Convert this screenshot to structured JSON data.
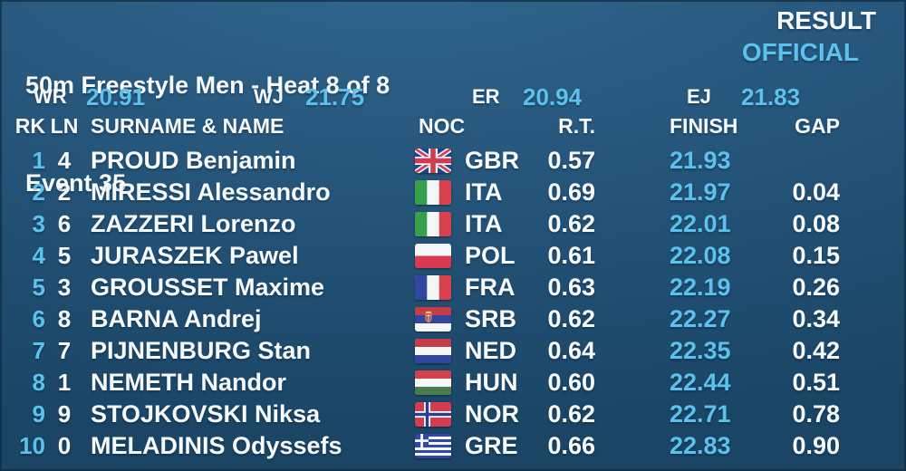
{
  "header": {
    "title_line1": "50m Freestyle Men - Heat 8 of 8",
    "title_line2": "Event 35",
    "status_line1": "RESULT",
    "status_line2": "OFFICIAL"
  },
  "records": [
    {
      "label": "WR",
      "value": "20.91"
    },
    {
      "label": "WJ",
      "value": "21.75"
    },
    {
      "label": "ER",
      "value": "20.94"
    },
    {
      "label": "EJ",
      "value": "21.83"
    }
  ],
  "columns": {
    "rank": "RK",
    "lane": "LN",
    "name": "SURNAME & NAME",
    "noc": "NOC",
    "rt": "R.T.",
    "finish": "FINISH",
    "gap": "GAP"
  },
  "results": [
    {
      "rank": "1",
      "lane": "4",
      "name": "PROUD Benjamin",
      "flag": "GBR",
      "noc": "GBR",
      "rt": "0.57",
      "finish": "21.93",
      "gap": ""
    },
    {
      "rank": "2",
      "lane": "2",
      "name": "MIRESSI Alessandro",
      "flag": "ITA",
      "noc": "ITA",
      "rt": "0.69",
      "finish": "21.97",
      "gap": "0.04"
    },
    {
      "rank": "3",
      "lane": "6",
      "name": "ZAZZERI Lorenzo",
      "flag": "ITA",
      "noc": "ITA",
      "rt": "0.62",
      "finish": "22.01",
      "gap": "0.08"
    },
    {
      "rank": "4",
      "lane": "5",
      "name": "JURASZEK Pawel",
      "flag": "POL",
      "noc": "POL",
      "rt": "0.61",
      "finish": "22.08",
      "gap": "0.15"
    },
    {
      "rank": "5",
      "lane": "3",
      "name": "GROUSSET Maxime",
      "flag": "FRA",
      "noc": "FRA",
      "rt": "0.63",
      "finish": "22.19",
      "gap": "0.26"
    },
    {
      "rank": "6",
      "lane": "8",
      "name": "BARNA Andrej",
      "flag": "SRB",
      "noc": "SRB",
      "rt": "0.62",
      "finish": "22.27",
      "gap": "0.34"
    },
    {
      "rank": "7",
      "lane": "7",
      "name": "PIJNENBURG Stan",
      "flag": "NED",
      "noc": "NED",
      "rt": "0.64",
      "finish": "22.35",
      "gap": "0.42"
    },
    {
      "rank": "8",
      "lane": "1",
      "name": "NEMETH Nandor",
      "flag": "HUN",
      "noc": "HUN",
      "rt": "0.60",
      "finish": "22.44",
      "gap": "0.51"
    },
    {
      "rank": "9",
      "lane": "9",
      "name": "STOJKOVSKI Niksa",
      "flag": "NOR",
      "noc": "NOR",
      "rt": "0.62",
      "finish": "22.71",
      "gap": "0.78"
    },
    {
      "rank": "10",
      "lane": "0",
      "name": "MELADINIS Odyssefs",
      "flag": "GRE",
      "noc": "GRE",
      "rt": "0.66",
      "finish": "22.83",
      "gap": "0.90"
    }
  ],
  "colors": {
    "accent_blue": "#5bc2ee",
    "text_white": "#f6fafd",
    "bg_top": "#30688f",
    "bg_bottom": "#1b4565"
  }
}
